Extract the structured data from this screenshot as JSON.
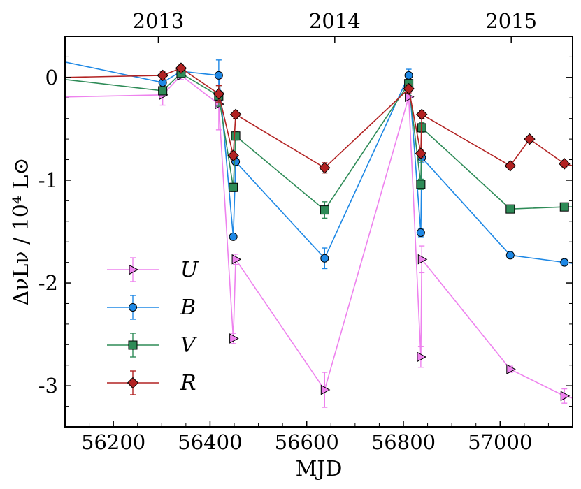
{
  "chart_data": {
    "type": "line",
    "xlabel": "MJD",
    "ylabel": "ΔνLν / 10⁴ L⊙",
    "xlim": [
      56100,
      57150
    ],
    "ylim": [
      -3.4,
      0.4
    ],
    "x_ticks": [
      56200,
      56400,
      56600,
      56800,
      57000
    ],
    "x_tick_labels": [
      "56200",
      "56400",
      "56600",
      "56800",
      "57000"
    ],
    "y_ticks": [
      0,
      -1,
      -2,
      -3
    ],
    "y_tick_labels": [
      "0",
      "-1",
      "-2",
      "-3"
    ],
    "top_axis": {
      "ticks": [
        56293,
        56658,
        57023
      ],
      "labels": [
        "2013",
        "2014",
        "2015"
      ]
    },
    "legend_position": "lower-left",
    "series": [
      {
        "name": "U",
        "color": "#ee82ee",
        "marker": "triangle-right",
        "points": [
          {
            "x": 56100,
            "y": -0.19,
            "err": 0
          },
          {
            "x": 56302,
            "y": -0.17,
            "err": 0.1
          },
          {
            "x": 56340,
            "y": 0.02,
            "err": 0.04
          },
          {
            "x": 56418,
            "y": -0.26,
            "err": 0.25
          },
          {
            "x": 56448,
            "y": -2.54,
            "err": 0.05
          },
          {
            "x": 56453,
            "y": -1.77,
            "err": 0.05
          },
          {
            "x": 56637,
            "y": -3.04,
            "err": 0.17
          },
          {
            "x": 56811,
            "y": -0.19,
            "err": 0.04
          },
          {
            "x": 56836,
            "y": -2.72,
            "err": 0.1
          },
          {
            "x": 56838,
            "y": -1.77,
            "err": 0.13
          },
          {
            "x": 57021,
            "y": -2.84,
            "err": 0.03
          },
          {
            "x": 57133,
            "y": -3.1,
            "err": 0.07
          },
          {
            "x": 57150,
            "y": -3.12,
            "err": 0
          }
        ]
      },
      {
        "name": "B",
        "color": "#1e88e5",
        "marker": "circle",
        "points": [
          {
            "x": 56100,
            "y": 0.15,
            "err": 0
          },
          {
            "x": 56302,
            "y": -0.05,
            "err": 0.05
          },
          {
            "x": 56340,
            "y": 0.06,
            "err": 0.03
          },
          {
            "x": 56418,
            "y": 0.02,
            "err": 0.15
          },
          {
            "x": 56448,
            "y": -1.55,
            "err": 0.03
          },
          {
            "x": 56453,
            "y": -0.82,
            "err": 0.04
          },
          {
            "x": 56637,
            "y": -1.76,
            "err": 0.1
          },
          {
            "x": 56811,
            "y": 0.02,
            "err": 0.06
          },
          {
            "x": 56836,
            "y": -1.51,
            "err": 0.04
          },
          {
            "x": 56838,
            "y": -0.78,
            "err": 0.05
          },
          {
            "x": 57021,
            "y": -1.73,
            "err": 0.03
          },
          {
            "x": 57133,
            "y": -1.8,
            "err": 0.03
          },
          {
            "x": 57150,
            "y": -1.81,
            "err": 0
          }
        ]
      },
      {
        "name": "V",
        "color": "#2e8b57",
        "marker": "square",
        "points": [
          {
            "x": 56100,
            "y": -0.02,
            "err": 0
          },
          {
            "x": 56302,
            "y": -0.13,
            "err": 0.04
          },
          {
            "x": 56340,
            "y": 0.04,
            "err": 0.03
          },
          {
            "x": 56418,
            "y": -0.18,
            "err": 0.1
          },
          {
            "x": 56448,
            "y": -1.07,
            "err": 0.04
          },
          {
            "x": 56453,
            "y": -0.57,
            "err": 0.04
          },
          {
            "x": 56637,
            "y": -1.29,
            "err": 0.08
          },
          {
            "x": 56811,
            "y": -0.06,
            "err": 0.04
          },
          {
            "x": 56836,
            "y": -1.04,
            "err": 0.05
          },
          {
            "x": 56838,
            "y": -0.49,
            "err": 0.05
          },
          {
            "x": 57021,
            "y": -1.28,
            "err": 0.02
          },
          {
            "x": 57133,
            "y": -1.26,
            "err": 0.03
          },
          {
            "x": 57150,
            "y": -1.26,
            "err": 0
          }
        ]
      },
      {
        "name": "R",
        "color": "#b22222",
        "marker": "diamond",
        "points": [
          {
            "x": 56100,
            "y": 0.0,
            "err": 0
          },
          {
            "x": 56302,
            "y": 0.02,
            "err": 0.04
          },
          {
            "x": 56340,
            "y": 0.09,
            "err": 0.03
          },
          {
            "x": 56418,
            "y": -0.16,
            "err": 0.08
          },
          {
            "x": 56448,
            "y": -0.76,
            "err": 0.04
          },
          {
            "x": 56453,
            "y": -0.36,
            "err": 0.04
          },
          {
            "x": 56637,
            "y": -0.88,
            "err": 0.05
          },
          {
            "x": 56811,
            "y": -0.11,
            "err": 0.04
          },
          {
            "x": 56836,
            "y": -0.74,
            "err": 0.04
          },
          {
            "x": 56838,
            "y": -0.36,
            "err": 0.04
          },
          {
            "x": 57021,
            "y": -0.86,
            "err": 0.02
          },
          {
            "x": 57061,
            "y": -0.6,
            "err": 0.02
          },
          {
            "x": 57133,
            "y": -0.84,
            "err": 0.03
          },
          {
            "x": 57150,
            "y": -0.86,
            "err": 0
          }
        ]
      }
    ]
  }
}
